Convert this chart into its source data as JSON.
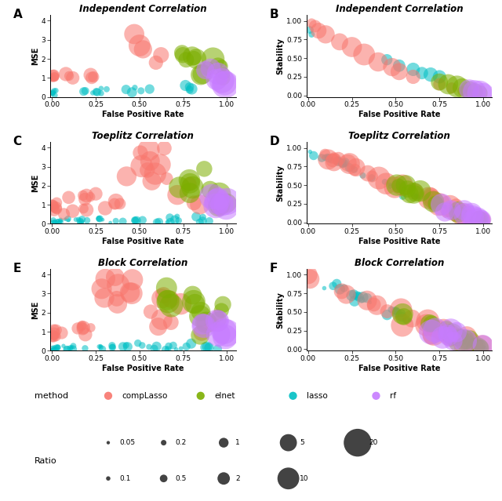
{
  "colors": {
    "compLasso": "#F8766D",
    "elnet": "#7CAE00",
    "lasso": "#00BFC4",
    "rf": "#C77CFF"
  },
  "method_names": [
    "compLasso",
    "elnet",
    "lasso",
    "rf"
  ],
  "corr_labels": [
    "Independent Correlation",
    "Toeplitz Correlation",
    "Block Correlation"
  ],
  "panel_labels": [
    "A",
    "B",
    "C",
    "D",
    "E",
    "F"
  ],
  "xlabel": "False Positive Rate",
  "mse_ylabel": "MSE",
  "stab_ylabel": "Stability",
  "mse_ylim": [
    0,
    4.3
  ],
  "stab_ylim": [
    -0.02,
    1.08
  ],
  "xlim": [
    -0.01,
    1.05
  ],
  "mse_yticks": [
    0,
    1,
    2,
    3,
    4
  ],
  "stab_yticks": [
    0.0,
    0.25,
    0.5,
    0.75,
    1.0
  ],
  "xticks": [
    0.0,
    0.25,
    0.5,
    0.75,
    1.0
  ],
  "background_color": "#FFFFFF",
  "legend_bg": "#EBEBEB",
  "alpha": 0.55,
  "size_scale": 8
}
